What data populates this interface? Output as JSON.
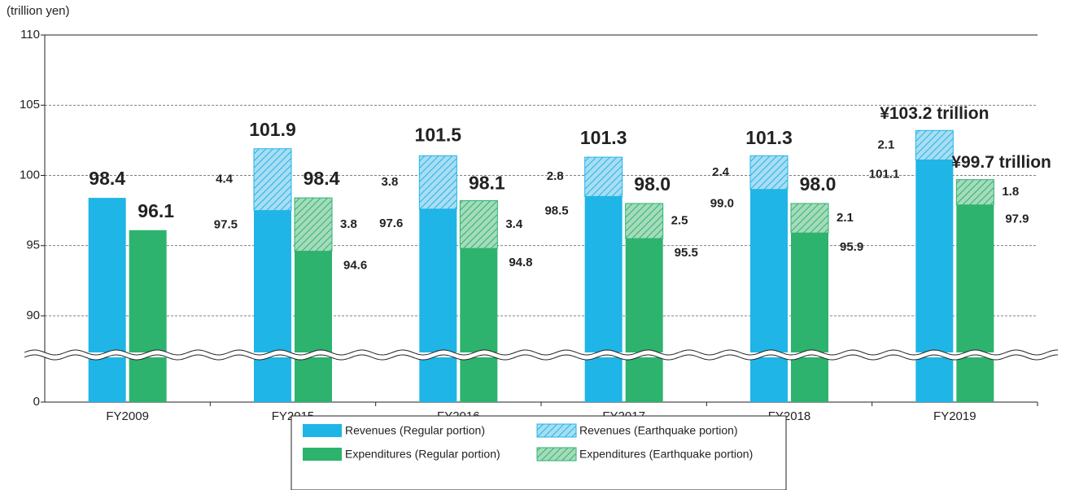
{
  "chart_data": {
    "type": "stacked_grouped_bar",
    "y_label": "(trillion yen)",
    "categories": [
      "FY2009",
      "FY2015",
      "FY2016",
      "FY2017",
      "FY2018",
      "FY2019"
    ],
    "ylim": [
      0,
      110
    ],
    "yticks": [
      0,
      90,
      95,
      100,
      105,
      110
    ],
    "axis_break": true,
    "grid": true,
    "groups": [
      {
        "series": [
          {
            "name": "Revenues (Regular portion)",
            "color": "#1fb5e6",
            "hatch": false,
            "values": [
              98.4,
              97.5,
              97.6,
              98.5,
              99.0,
              101.1
            ],
            "value_labels": [
              null,
              "97.5",
              "97.6",
              "98.5",
              "99.0",
              "101.1"
            ]
          },
          {
            "name": "Revenues (Earthquake portion)",
            "color": "#1fb5e6",
            "hatch": true,
            "values": [
              null,
              4.4,
              3.8,
              2.8,
              2.4,
              2.1
            ],
            "value_labels": [
              null,
              "4.4",
              "3.8",
              "2.8",
              "2.4",
              "2.1"
            ]
          }
        ],
        "totals": {
          "values": [
            98.4,
            101.9,
            101.5,
            101.3,
            101.3,
            103.2
          ],
          "value_labels": [
            "98.4",
            "101.9",
            "101.5",
            "101.3",
            "101.3",
            "¥103.2 trillion"
          ]
        }
      },
      {
        "series": [
          {
            "name": "Expenditures (Regular portion)",
            "color": "#2db36e",
            "hatch": false,
            "values": [
              96.1,
              94.6,
              94.8,
              95.5,
              95.9,
              97.9
            ],
            "value_labels": [
              null,
              "94.6",
              "94.8",
              "95.5",
              "95.9",
              "97.9"
            ]
          },
          {
            "name": "Expenditures (Earthquake portion)",
            "color": "#2db36e",
            "hatch": true,
            "values": [
              null,
              3.8,
              3.4,
              2.5,
              2.1,
              1.8
            ],
            "value_labels": [
              null,
              "3.8",
              "3.4",
              "2.5",
              "2.1",
              "1.8"
            ]
          }
        ],
        "totals": {
          "values": [
            96.1,
            98.4,
            98.1,
            98.0,
            98.0,
            99.7
          ],
          "value_labels": [
            "96.1",
            "98.4",
            "98.1",
            "98.0",
            "98.0",
            "¥99.7 trillion"
          ]
        }
      }
    ]
  }
}
